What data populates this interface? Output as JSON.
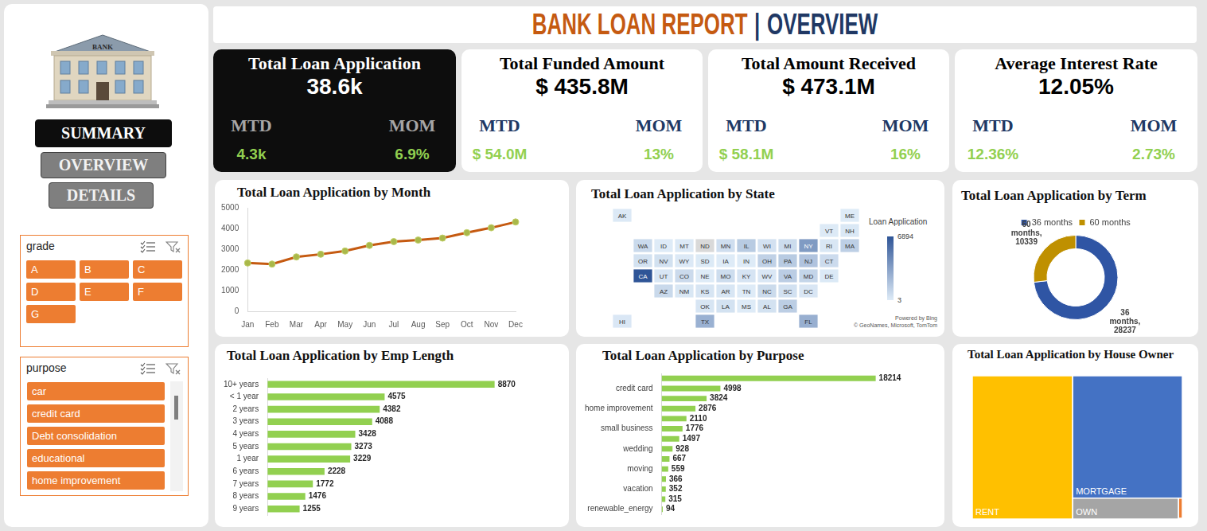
{
  "header": {
    "title": "BANK LOAN REPORT",
    "separator": "|",
    "subtitle": "OVERVIEW"
  },
  "sidebar": {
    "logo_text": "BANK",
    "buttons": [
      "SUMMARY",
      "OVERVIEW",
      "DETAILS"
    ],
    "slicers": [
      {
        "title": "grade",
        "items": [
          "A",
          "B",
          "C",
          "D",
          "E",
          "F",
          "G"
        ]
      },
      {
        "title": "purpose",
        "items": [
          "car",
          "credit card",
          "Debt consolidation",
          "educational",
          "home improvement"
        ]
      }
    ]
  },
  "kpis": [
    {
      "title": "Total Loan Application",
      "value": "38.6k",
      "mtd_label": "MTD",
      "mtd": "4.3k",
      "mom_label": "MOM",
      "mom": "6.9%"
    },
    {
      "title": "Total Funded Amount",
      "value": "$ 435.8M",
      "mtd_label": "MTD",
      "mtd": "$ 54.0M",
      "mom_label": "MOM",
      "mom": "13%"
    },
    {
      "title": "Total Amount Received",
      "value": "$ 473.1M",
      "mtd_label": "MTD",
      "mtd": "$ 58.1M",
      "mom_label": "MOM",
      "mom": "16%"
    },
    {
      "title": "Average Interest Rate",
      "value": "12.05%",
      "mtd_label": "MTD",
      "mtd": "12.36%",
      "mom_label": "MOM",
      "mom": "2.73%"
    }
  ],
  "chart_data": [
    {
      "type": "line",
      "title": "Total Loan Application by Month",
      "categories": [
        "Jan",
        "Feb",
        "Mar",
        "Apr",
        "May",
        "Jun",
        "Jul",
        "Aug",
        "Sep",
        "Oct",
        "Nov",
        "Dec"
      ],
      "values": [
        2332,
        2279,
        2627,
        2755,
        2911,
        3184,
        3366,
        3441,
        3536,
        3796,
        4035,
        4314
      ],
      "color": "#C55A11",
      "marker": "circle",
      "ylim": [
        0,
        5000
      ],
      "yticks": [
        0,
        1000,
        2000,
        3000,
        4000,
        5000
      ],
      "grid": false
    },
    {
      "type": "map",
      "title": "Total Loan Application by State",
      "states": [
        "AK",
        "ME",
        "VT",
        "NH",
        "WA",
        "ID",
        "MT",
        "ND",
        "MN",
        "IL",
        "WI",
        "MI",
        "NY",
        "RI",
        "MA",
        "OR",
        "NV",
        "WY",
        "SD",
        "IA",
        "IN",
        "OH",
        "PA",
        "NJ",
        "CT",
        "CA",
        "UT",
        "CO",
        "NE",
        "MO",
        "KY",
        "WV",
        "VA",
        "MD",
        "DE",
        "AZ",
        "NM",
        "KS",
        "AR",
        "TN",
        "NC",
        "SC",
        "DC",
        "OK",
        "LA",
        "MS",
        "AL",
        "GA",
        "HI",
        "TX",
        "FL"
      ],
      "values": [
        78,
        3,
        54,
        163,
        805,
        6,
        85,
        null,
        591,
        1486,
        446,
        697,
        3701,
        196,
        1310,
        436,
        482,
        79,
        63,
        5,
        9,
        1188,
        1482,
        1822,
        730,
        6894,
        252,
        770,
        5,
        668,
        320,
        172,
        1375,
        1027,
        110,
        833,
        183,
        260,
        236,
        17,
        759,
        464,
        211,
        293,
        426,
        19,
        435,
        1355,
        170,
        2664,
        2773
      ],
      "colorbar": {
        "title": "Loan Application",
        "range": [
          3,
          6894
        ],
        "ticks": [
          3,
          6894
        ]
      },
      "annotations": [
        "Powered by Bing",
        "© GeoNames, Microsoft, TomTom"
      ]
    },
    {
      "type": "doughnut",
      "title": "Total Loan Application by Term",
      "categories": [
        "36 months",
        "60 months"
      ],
      "values": [
        28237,
        10339
      ],
      "colors": [
        "#2F55A4",
        "#BF9000"
      ],
      "legend": "top",
      "data_labels": true,
      "value_labels": [
        "36 months, 28237",
        "60 months, 10339"
      ]
    },
    {
      "type": "bar",
      "orientation": "horizontal",
      "title": "Total Loan Application by Emp Length",
      "categories": [
        "10+ years",
        "< 1 year",
        "2 years",
        "3 years",
        "4 years",
        "5 years",
        "1 year",
        "6 years",
        "7 years",
        "8 years",
        "9 years"
      ],
      "values": [
        8870,
        4575,
        4382,
        4088,
        3428,
        3273,
        3229,
        2228,
        1772,
        1476,
        1255
      ],
      "color": "#92D050",
      "data_labels": true,
      "tick_labels": "y",
      "xlim": [
        0,
        10000
      ],
      "grid": false
    },
    {
      "type": "bar",
      "orientation": "horizontal",
      "title": "Total Loan Application by Purpose",
      "categories": [
        null,
        "credit card",
        null,
        "home improvement",
        null,
        "small business",
        null,
        "wedding",
        null,
        "moving",
        null,
        "vacation",
        null,
        "renewable_energy"
      ],
      "values": [
        18214,
        4998,
        3824,
        2876,
        2110,
        1776,
        1497,
        928,
        667,
        559,
        366,
        352,
        315,
        94
      ],
      "color": "#92D050",
      "data_labels": true,
      "tick_labels": "y",
      "xlim": [
        0,
        20000
      ],
      "grid": false
    },
    {
      "type": "treemap",
      "title": "Total Loan Application by House Owner",
      "categories": [
        "RENT",
        "MORTGAGE",
        "OWN",
        null,
        null
      ],
      "values": [
        18439,
        17198,
        2838,
        98,
        3
      ],
      "colors": [
        "#FFC000",
        "#4472C4",
        "#A5A5A5",
        "#ED7D31",
        "#264478"
      ]
    }
  ]
}
